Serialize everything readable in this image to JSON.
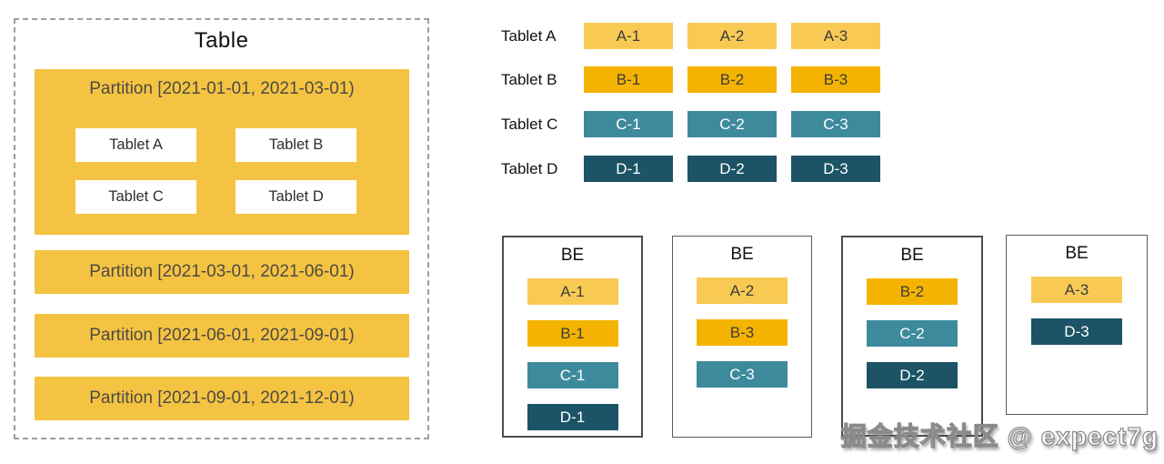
{
  "colors": {
    "a": {
      "bg": "#F8CA54",
      "fg": "#3D3D3D"
    },
    "b": {
      "bg": "#F5B301",
      "fg": "#3D3D3D"
    },
    "c": {
      "bg": "#3E8A9D",
      "fg": "#FFFFFF"
    },
    "d": {
      "bg": "#1C5366",
      "fg": "#FFFFFF"
    },
    "partition": {
      "bg": "#F5C342",
      "fg": "#4B4B45"
    }
  },
  "table_panel": {
    "title": "Table",
    "partitions": [
      {
        "label": "Partition [2021-01-01, 2021-03-01)",
        "color": "partition",
        "tablets": [
          "Tablet A",
          "Tablet B",
          "Tablet C",
          "Tablet D"
        ]
      },
      {
        "label": "Partition [2021-03-01, 2021-06-01)",
        "color": "partition",
        "tablets": []
      },
      {
        "label": "Partition [2021-06-01, 2021-09-01)",
        "color": "partition",
        "tablets": []
      },
      {
        "label": "Partition [2021-09-01, 2021-12-01)",
        "color": "partition",
        "tablets": []
      }
    ]
  },
  "tablet_replica_rows": [
    {
      "label": "Tablet A",
      "color": "a",
      "replicas": [
        "A-1",
        "A-2",
        "A-3"
      ]
    },
    {
      "label": "Tablet B",
      "color": "b",
      "replicas": [
        "B-1",
        "B-2",
        "B-3"
      ]
    },
    {
      "label": "Tablet C",
      "color": "c",
      "replicas": [
        "C-1",
        "C-2",
        "C-3"
      ]
    },
    {
      "label": "Tablet D",
      "color": "d",
      "replicas": [
        "D-1",
        "D-2",
        "D-3"
      ]
    }
  ],
  "be_nodes": [
    {
      "label": "BE",
      "replicas": [
        {
          "name": "A-1",
          "color": "a"
        },
        {
          "name": "B-1",
          "color": "b"
        },
        {
          "name": "C-1",
          "color": "c"
        },
        {
          "name": "D-1",
          "color": "d"
        }
      ]
    },
    {
      "label": "BE",
      "replicas": [
        {
          "name": "A-2",
          "color": "a"
        },
        {
          "name": "B-3",
          "color": "b"
        },
        {
          "name": "C-3",
          "color": "c"
        }
      ]
    },
    {
      "label": "BE",
      "replicas": [
        {
          "name": "B-2",
          "color": "b"
        },
        {
          "name": "C-2",
          "color": "c"
        },
        {
          "name": "D-2",
          "color": "d"
        }
      ]
    },
    {
      "label": "BE",
      "replicas": [
        {
          "name": "A-3",
          "color": "a"
        },
        {
          "name": "D-3",
          "color": "d"
        }
      ]
    }
  ],
  "watermark": {
    "text": "掘金技术社区 @ expect7g"
  }
}
